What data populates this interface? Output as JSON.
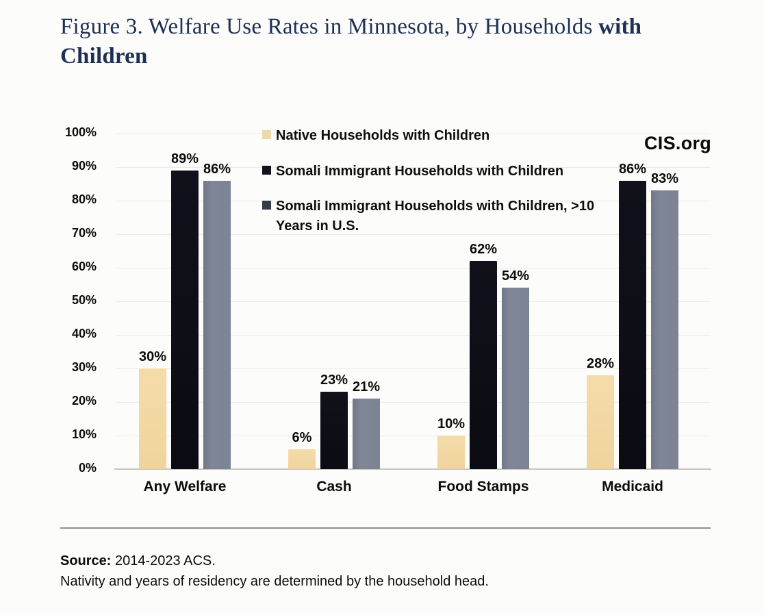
{
  "title": {
    "regular": "Figure 3. Welfare Use Rates in Minnesota, by Households",
    "bold": "with Children"
  },
  "watermark": "CIS.org",
  "legend": {
    "items": [
      {
        "label": "Native Households with Children",
        "color": "#eed9ad"
      },
      {
        "label": "Somali Immigrant Households with Children",
        "color": "#12121a"
      },
      {
        "label": "Somali Immigrant Households with Children, >10 Years in U.S.",
        "color": "#353c49"
      }
    ]
  },
  "chart_data": {
    "type": "bar",
    "title": "Figure 3. Welfare Use Rates in Minnesota, by Households with Children",
    "categories": [
      "Any Welfare",
      "Cash",
      "Food Stamps",
      "Medicaid"
    ],
    "series": [
      {
        "name": "Native Households with Children",
        "color": "#f2d8a4",
        "values": [
          30,
          6,
          10,
          28
        ]
      },
      {
        "name": "Somali Immigrant Households with Children",
        "color": "#0d0d15",
        "values": [
          89,
          23,
          62,
          86
        ]
      },
      {
        "name": "Somali Immigrant Households with Children, >10 Years in U.S.",
        "color": "#7b8395",
        "values": [
          86,
          21,
          54,
          83
        ]
      }
    ],
    "xlabel": "",
    "ylabel": "",
    "ylim": [
      0,
      100
    ],
    "yticks": [
      "0%",
      "10%",
      "20%",
      "30%",
      "40%",
      "50%",
      "60%",
      "70%",
      "80%",
      "90%",
      "100%"
    ],
    "value_suffix": "%",
    "grid": true,
    "legend_position": "top-center"
  },
  "footer": {
    "source_label": "Source:",
    "source_text": " 2014-2023 ACS.",
    "note": "Nativity and years of residency are determined by the household head."
  }
}
